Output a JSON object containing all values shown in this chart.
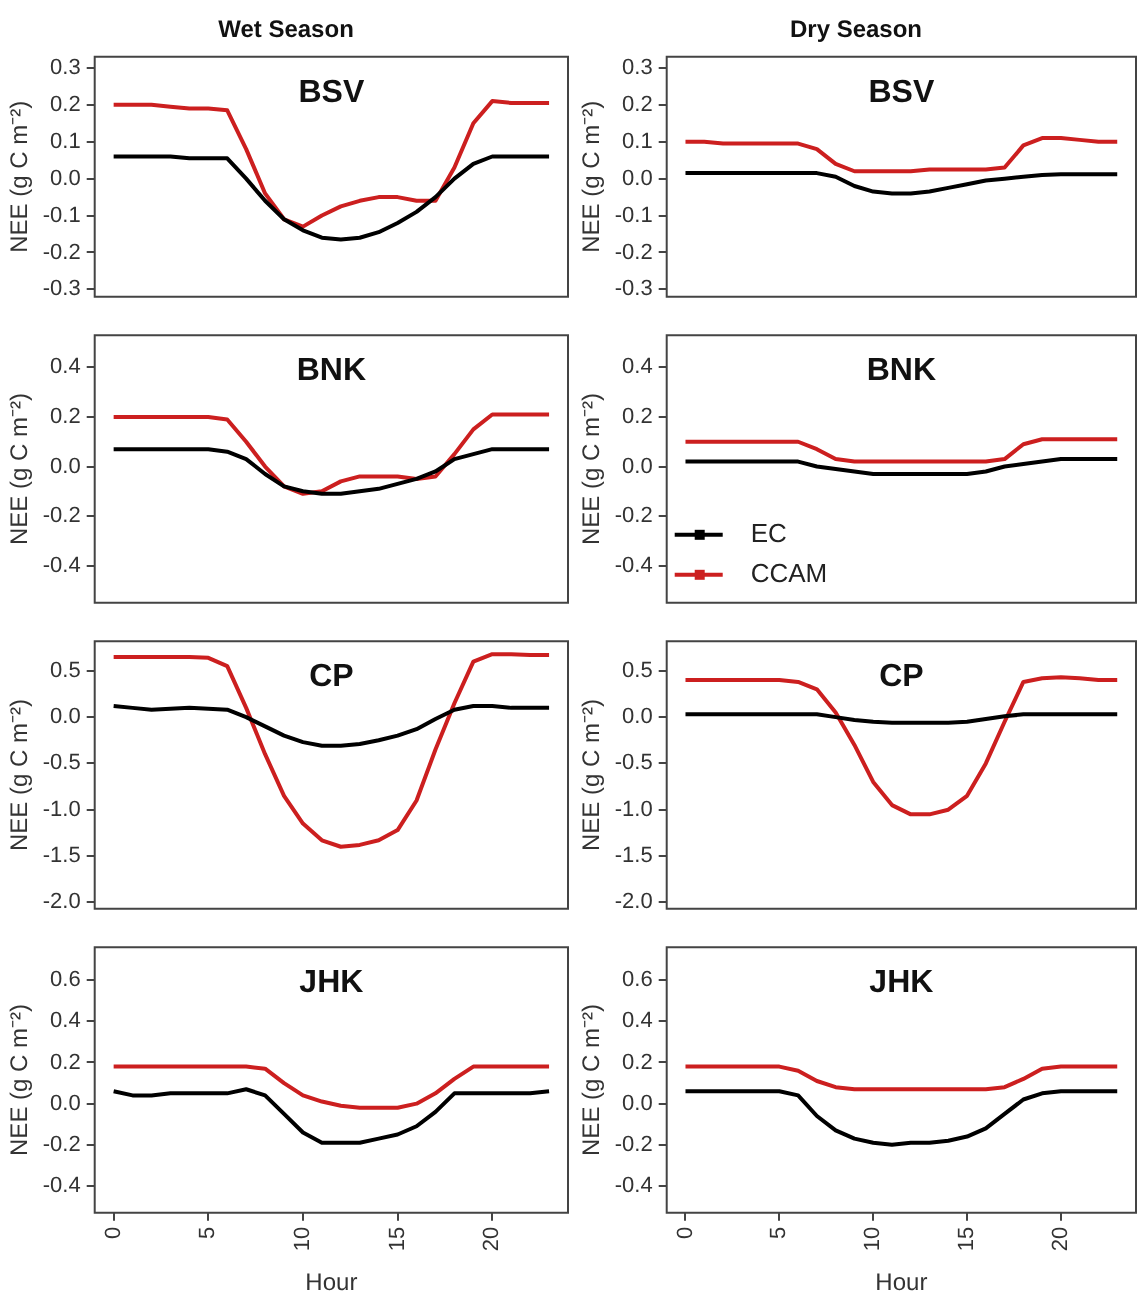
{
  "chart_data": [
    {
      "type": "line",
      "title": "Wet Season",
      "ylabel": "NEE (g C m⁻²)",
      "annotations": [
        "BSV"
      ],
      "x": [
        0,
        1,
        2,
        3,
        4,
        5,
        6,
        7,
        8,
        9,
        10,
        11,
        12,
        13,
        14,
        15,
        16,
        17,
        18,
        19,
        20,
        21,
        22,
        23
      ],
      "xlim": [
        -1,
        24
      ],
      "ylim": [
        -0.32,
        0.33
      ],
      "yticks": [
        -0.3,
        -0.2,
        -0.1,
        {
          "value": 0,
          "label": "0.0"
        },
        0.1,
        0.2,
        0.3
      ],
      "tick_labels": "y",
      "marker": "none",
      "series": [
        {
          "color": "#000000",
          "values": [
            0.06,
            0.06,
            0.06,
            0.06,
            0.055,
            0.055,
            0.055,
            0.0,
            -0.06,
            -0.11,
            -0.14,
            -0.16,
            -0.165,
            -0.16,
            -0.145,
            -0.12,
            -0.09,
            -0.05,
            0.0,
            0.04,
            0.06,
            0.06,
            0.06,
            0.06
          ]
        },
        {
          "color": "#cc1f1f",
          "values": [
            0.2,
            0.2,
            0.2,
            0.195,
            0.19,
            0.19,
            0.185,
            0.08,
            -0.04,
            -0.11,
            -0.13,
            -0.1,
            -0.075,
            -0.06,
            -0.05,
            -0.05,
            -0.06,
            -0.06,
            0.03,
            0.15,
            0.21,
            0.205,
            0.205,
            0.205
          ]
        }
      ]
    },
    {
      "type": "line",
      "title": "Dry Season",
      "ylabel": "NEE (g C m⁻²)",
      "annotations": [
        "BSV"
      ],
      "x": [
        0,
        1,
        2,
        3,
        4,
        5,
        6,
        7,
        8,
        9,
        10,
        11,
        12,
        13,
        14,
        15,
        16,
        17,
        18,
        19,
        20,
        21,
        22,
        23
      ],
      "xlim": [
        -1,
        24
      ],
      "ylim": [
        -0.32,
        0.33
      ],
      "yticks": [
        -0.3,
        -0.2,
        -0.1,
        {
          "value": 0,
          "label": "0.0"
        },
        0.1,
        0.2,
        0.3
      ],
      "tick_labels": "y",
      "marker": "none",
      "series": [
        {
          "color": "#000000",
          "values": [
            0.015,
            0.015,
            0.015,
            0.015,
            0.015,
            0.015,
            0.015,
            0.015,
            0.005,
            -0.02,
            -0.035,
            -0.04,
            -0.04,
            -0.035,
            -0.025,
            -0.015,
            -0.005,
            0.0,
            0.005,
            0.01,
            0.012,
            0.012,
            0.012,
            0.012
          ]
        },
        {
          "color": "#cc1f1f",
          "values": [
            0.1,
            0.1,
            0.095,
            0.095,
            0.095,
            0.095,
            0.095,
            0.08,
            0.04,
            0.02,
            0.02,
            0.02,
            0.02,
            0.025,
            0.025,
            0.025,
            0.025,
            0.03,
            0.09,
            0.11,
            0.11,
            0.105,
            0.1,
            0.1
          ]
        }
      ]
    },
    {
      "type": "line",
      "ylabel": "NEE (g C m⁻²)",
      "annotations": [
        "BNK"
      ],
      "x": [
        0,
        1,
        2,
        3,
        4,
        5,
        6,
        7,
        8,
        9,
        10,
        11,
        12,
        13,
        14,
        15,
        16,
        17,
        18,
        19,
        20,
        21,
        22,
        23
      ],
      "xlim": [
        -1,
        24
      ],
      "ylim": [
        -0.55,
        0.53
      ],
      "yticks": [
        -0.4,
        -0.2,
        {
          "value": 0,
          "label": "0.0"
        },
        0.2,
        0.4
      ],
      "tick_labels": "y",
      "marker": "none",
      "series": [
        {
          "color": "#000000",
          "values": [
            0.07,
            0.07,
            0.07,
            0.07,
            0.07,
            0.07,
            0.06,
            0.03,
            -0.03,
            -0.08,
            -0.1,
            -0.11,
            -0.11,
            -0.1,
            -0.09,
            -0.07,
            -0.05,
            -0.02,
            0.03,
            0.05,
            0.07,
            0.07,
            0.07,
            0.07
          ]
        },
        {
          "color": "#cc1f1f",
          "values": [
            0.2,
            0.2,
            0.2,
            0.2,
            0.2,
            0.2,
            0.19,
            0.1,
            0.0,
            -0.08,
            -0.11,
            -0.1,
            -0.06,
            -0.04,
            -0.04,
            -0.04,
            -0.05,
            -0.04,
            0.05,
            0.15,
            0.21,
            0.21,
            0.21,
            0.21
          ]
        }
      ]
    },
    {
      "type": "line",
      "ylabel": "NEE (g C m⁻²)",
      "annotations": [
        "BNK"
      ],
      "x": [
        0,
        1,
        2,
        3,
        4,
        5,
        6,
        7,
        8,
        9,
        10,
        11,
        12,
        13,
        14,
        15,
        16,
        17,
        18,
        19,
        20,
        21,
        22,
        23
      ],
      "xlim": [
        -1,
        24
      ],
      "ylim": [
        -0.55,
        0.53
      ],
      "yticks": [
        -0.4,
        -0.2,
        {
          "value": 0,
          "label": "0.0"
        },
        0.2,
        0.4
      ],
      "tick_labels": "y",
      "marker": "none",
      "legend": "bottom left",
      "series": [
        {
          "name": "EC",
          "color": "#000000",
          "values": [
            0.02,
            0.02,
            0.02,
            0.02,
            0.02,
            0.02,
            0.02,
            0.0,
            -0.01,
            -0.02,
            -0.03,
            -0.03,
            -0.03,
            -0.03,
            -0.03,
            -0.03,
            -0.02,
            0.0,
            0.01,
            0.02,
            0.03,
            0.03,
            0.03,
            0.03
          ]
        },
        {
          "name": "CCAM",
          "color": "#cc1f1f",
          "values": [
            0.1,
            0.1,
            0.1,
            0.1,
            0.1,
            0.1,
            0.1,
            0.07,
            0.03,
            0.02,
            0.02,
            0.02,
            0.02,
            0.02,
            0.02,
            0.02,
            0.02,
            0.03,
            0.09,
            0.11,
            0.11,
            0.11,
            0.11,
            0.11
          ]
        }
      ]
    },
    {
      "type": "line",
      "ylabel": "NEE (g C m⁻²)",
      "annotations": [
        "CP"
      ],
      "x": [
        0,
        1,
        2,
        3,
        4,
        5,
        6,
        7,
        8,
        9,
        10,
        11,
        12,
        13,
        14,
        15,
        16,
        17,
        18,
        19,
        20,
        21,
        22,
        23
      ],
      "xlim": [
        -1,
        24
      ],
      "ylim": [
        -2.07,
        0.82
      ],
      "yticks": [
        {
          "value": -2,
          "label": "-2.0"
        },
        -1.5,
        {
          "value": -1,
          "label": "-1.0"
        },
        -0.5,
        {
          "value": 0,
          "label": "0.0"
        },
        0.5
      ],
      "tick_labels": "y",
      "marker": "none",
      "series": [
        {
          "color": "#000000",
          "values": [
            0.12,
            0.1,
            0.08,
            0.09,
            0.1,
            0.09,
            0.08,
            0.0,
            -0.1,
            -0.2,
            -0.27,
            -0.31,
            -0.31,
            -0.29,
            -0.25,
            -0.2,
            -0.13,
            -0.02,
            0.08,
            0.12,
            0.12,
            0.1,
            0.1,
            0.1
          ]
        },
        {
          "color": "#cc1f1f",
          "values": [
            0.65,
            0.65,
            0.65,
            0.65,
            0.65,
            0.64,
            0.55,
            0.1,
            -0.4,
            -0.85,
            -1.15,
            -1.33,
            -1.4,
            -1.38,
            -1.33,
            -1.22,
            -0.9,
            -0.35,
            0.15,
            0.6,
            0.68,
            0.68,
            0.67,
            0.67
          ]
        }
      ]
    },
    {
      "type": "line",
      "ylabel": "NEE (g C m⁻²)",
      "annotations": [
        "CP"
      ],
      "x": [
        0,
        1,
        2,
        3,
        4,
        5,
        6,
        7,
        8,
        9,
        10,
        11,
        12,
        13,
        14,
        15,
        16,
        17,
        18,
        19,
        20,
        21,
        22,
        23
      ],
      "xlim": [
        -1,
        24
      ],
      "ylim": [
        -2.07,
        0.82
      ],
      "yticks": [
        {
          "value": -2,
          "label": "-2.0"
        },
        -1.5,
        {
          "value": -1,
          "label": "-1.0"
        },
        -0.5,
        {
          "value": 0,
          "label": "0.0"
        },
        0.5
      ],
      "tick_labels": "y",
      "marker": "none",
      "series": [
        {
          "color": "#000000",
          "values": [
            0.03,
            0.03,
            0.03,
            0.03,
            0.03,
            0.03,
            0.03,
            0.03,
            0.0,
            -0.03,
            -0.05,
            -0.06,
            -0.06,
            -0.06,
            -0.06,
            -0.05,
            -0.02,
            0.01,
            0.03,
            0.03,
            0.03,
            0.03,
            0.03,
            0.03
          ]
        },
        {
          "color": "#cc1f1f",
          "values": [
            0.4,
            0.4,
            0.4,
            0.4,
            0.4,
            0.4,
            0.38,
            0.3,
            0.05,
            -0.3,
            -0.7,
            -0.95,
            -1.05,
            -1.05,
            -1.0,
            -0.85,
            -0.5,
            -0.05,
            0.38,
            0.42,
            0.43,
            0.42,
            0.4,
            0.4
          ]
        }
      ]
    },
    {
      "type": "line",
      "ylabel": "NEE (g C m⁻²)",
      "xlabel": "Hour",
      "annotations": [
        "JHK"
      ],
      "x": [
        0,
        1,
        2,
        3,
        4,
        5,
        6,
        7,
        8,
        9,
        10,
        11,
        12,
        13,
        14,
        15,
        16,
        17,
        18,
        19,
        20,
        21,
        22,
        23
      ],
      "xlim": [
        -1,
        24
      ],
      "xticks": [
        0,
        5,
        10,
        15,
        20
      ],
      "ylim": [
        -0.53,
        0.76
      ],
      "yticks": [
        -0.4,
        -0.2,
        {
          "value": 0,
          "label": "0.0"
        },
        0.2,
        0.4,
        0.6
      ],
      "marker": "none",
      "series": [
        {
          "color": "#000000",
          "values": [
            0.06,
            0.04,
            0.04,
            0.05,
            0.05,
            0.05,
            0.05,
            0.07,
            0.04,
            -0.05,
            -0.14,
            -0.19,
            -0.19,
            -0.19,
            -0.17,
            -0.15,
            -0.11,
            -0.04,
            0.05,
            0.05,
            0.05,
            0.05,
            0.05,
            0.06
          ]
        },
        {
          "color": "#cc1f1f",
          "values": [
            0.18,
            0.18,
            0.18,
            0.18,
            0.18,
            0.18,
            0.18,
            0.18,
            0.17,
            0.1,
            0.04,
            0.01,
            -0.01,
            -0.02,
            -0.02,
            -0.02,
            0.0,
            0.05,
            0.12,
            0.18,
            0.18,
            0.18,
            0.18,
            0.18
          ]
        }
      ]
    },
    {
      "type": "line",
      "ylabel": "NEE (g C m⁻²)",
      "xlabel": "Hour",
      "annotations": [
        "JHK"
      ],
      "x": [
        0,
        1,
        2,
        3,
        4,
        5,
        6,
        7,
        8,
        9,
        10,
        11,
        12,
        13,
        14,
        15,
        16,
        17,
        18,
        19,
        20,
        21,
        22,
        23
      ],
      "xlim": [
        -1,
        24
      ],
      "xticks": [
        0,
        5,
        10,
        15,
        20
      ],
      "ylim": [
        -0.53,
        0.76
      ],
      "yticks": [
        -0.4,
        -0.2,
        {
          "value": 0,
          "label": "0.0"
        },
        0.2,
        0.4,
        0.6
      ],
      "marker": "none",
      "series": [
        {
          "color": "#000000",
          "values": [
            0.06,
            0.06,
            0.06,
            0.06,
            0.06,
            0.06,
            0.04,
            -0.06,
            -0.13,
            -0.17,
            -0.19,
            -0.2,
            -0.19,
            -0.19,
            -0.18,
            -0.16,
            -0.12,
            -0.05,
            0.02,
            0.05,
            0.06,
            0.06,
            0.06,
            0.06
          ]
        },
        {
          "color": "#cc1f1f",
          "values": [
            0.18,
            0.18,
            0.18,
            0.18,
            0.18,
            0.18,
            0.16,
            0.11,
            0.08,
            0.07,
            0.07,
            0.07,
            0.07,
            0.07,
            0.07,
            0.07,
            0.07,
            0.08,
            0.12,
            0.17,
            0.18,
            0.18,
            0.18,
            0.18
          ]
        }
      ]
    }
  ]
}
